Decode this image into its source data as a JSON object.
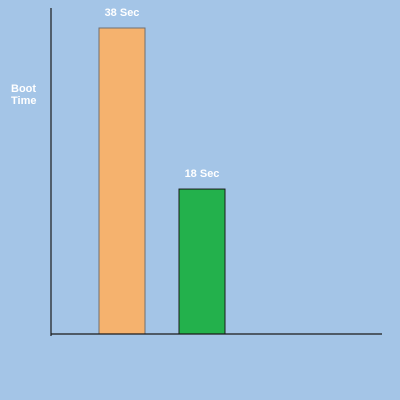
{
  "chart_data": {
    "type": "bar",
    "title": "",
    "xlabel": "",
    "ylabel": "Boot Time",
    "ylabel_lines": [
      "Boot",
      "Time"
    ],
    "categories": [
      "",
      ""
    ],
    "values": [
      38,
      18
    ],
    "value_labels": [
      "38 Sec",
      "18 Sec"
    ],
    "ylim": [
      0,
      38
    ],
    "grid": false,
    "legend": "none",
    "colors": {
      "background": "#a4c5e7",
      "bars": [
        "#f5b26e",
        "#23b14c"
      ],
      "bar_outlines": [
        "#707070",
        "#1a1a1a"
      ],
      "axis": "#1a1a1a",
      "text": "#ffffff"
    }
  }
}
